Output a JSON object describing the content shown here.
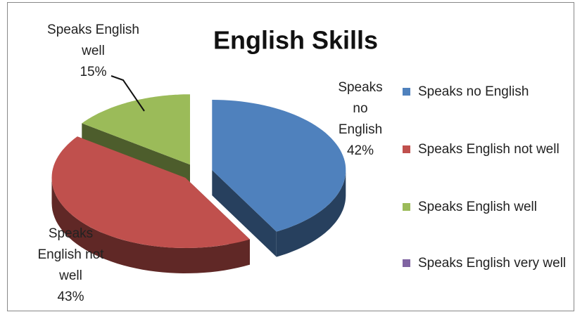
{
  "chart_data": {
    "type": "pie",
    "title": "English Skills",
    "categories": [
      "Speaks no English",
      "Speaks English not well",
      "Speaks English well",
      "Speaks English very well"
    ],
    "values": [
      42,
      43,
      15,
      0
    ],
    "value_labels": [
      "42%",
      "43%",
      "15%",
      null
    ],
    "colors": [
      "#4f81bd",
      "#c0504d",
      "#9bbb59",
      "#8064a2"
    ],
    "legend": "right"
  }
}
